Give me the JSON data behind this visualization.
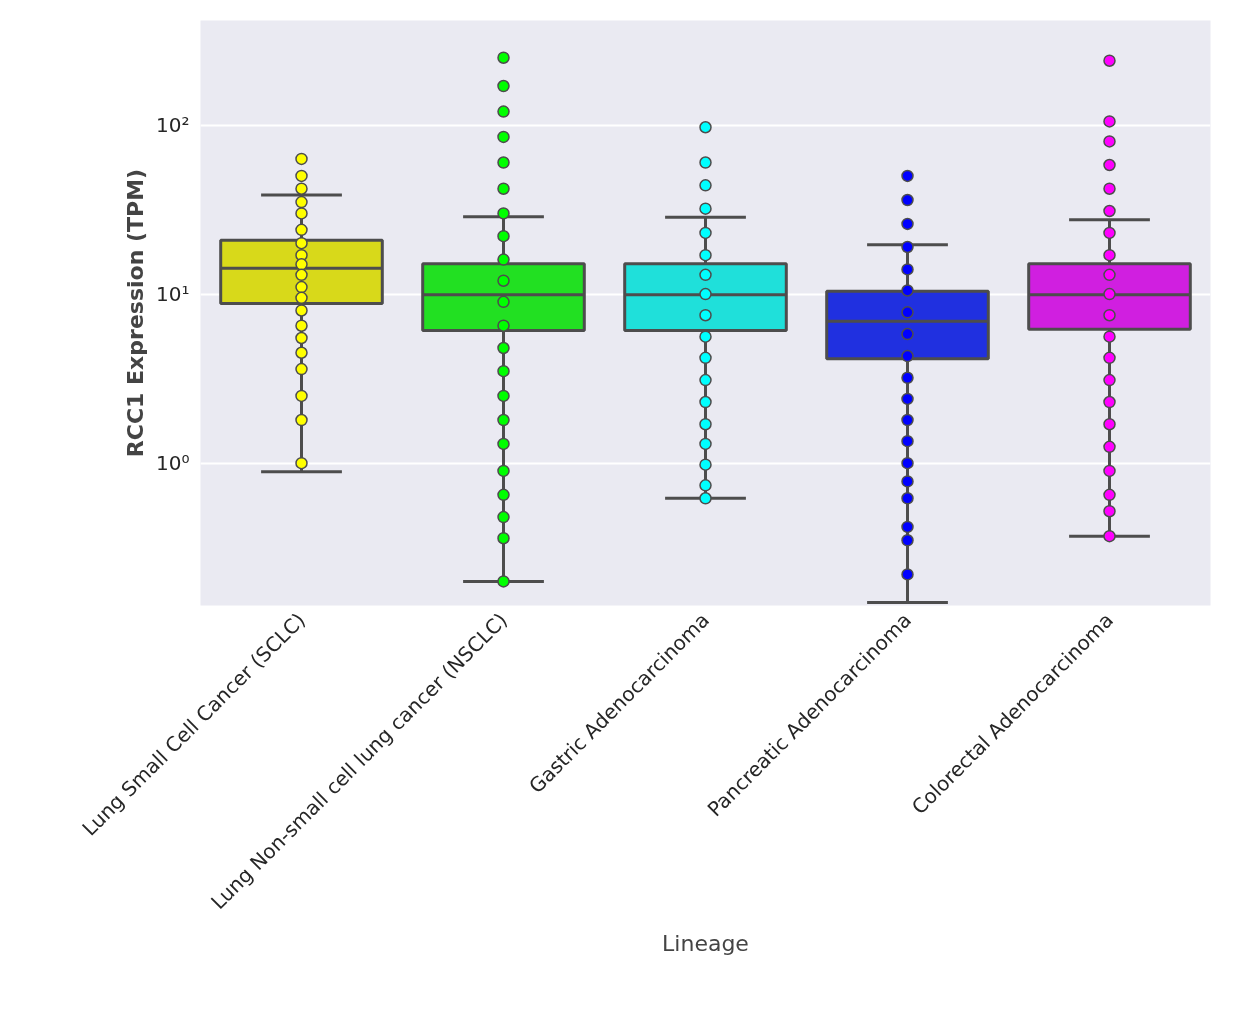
{
  "chart_data": {
    "type": "box",
    "xlabel": "Lineage",
    "ylabel": "RCC1 Expression (TPM)",
    "categories": [
      "Lung Small Cell Cancer (SCLC)",
      "Lung Non-small cell lung cancer (NSCLC)",
      "Gastric Adenocarcinoma",
      "Pancreatic Adenocarcinoma",
      "Colorectal Adenocarcinoma"
    ],
    "colors": [
      "#d8d91a",
      "#22e022",
      "#1fe0da",
      "#2030e0",
      "#d01fe0"
    ],
    "boxes": [
      {
        "low": 0.89,
        "q1": 8.8,
        "median": 14.2,
        "q3": 20.8,
        "high": 38.5
      },
      {
        "low": 0.2,
        "q1": 6.1,
        "median": 9.9,
        "q3": 15.1,
        "high": 28.7
      },
      {
        "low": 0.62,
        "q1": 6.1,
        "median": 9.9,
        "q3": 15.1,
        "high": 28.5
      },
      {
        "low": 0.15,
        "q1": 4.15,
        "median": 6.9,
        "q3": 10.4,
        "high": 19.6
      },
      {
        "low": 0.37,
        "q1": 6.2,
        "median": 9.9,
        "q3": 15.1,
        "high": 27.5
      }
    ],
    "series": [
      {
        "type": "scatter",
        "color": "#ffff00",
        "x": [
          "Lung Small Cell Cancer (SCLC)",
          "Lung Small Cell Cancer (SCLC)",
          "Lung Small Cell Cancer (SCLC)",
          "Lung Small Cell Cancer (SCLC)",
          "Lung Small Cell Cancer (SCLC)",
          "Lung Small Cell Cancer (SCLC)",
          "Lung Small Cell Cancer (SCLC)",
          "Lung Small Cell Cancer (SCLC)",
          "Lung Small Cell Cancer (SCLC)",
          "Lung Small Cell Cancer (SCLC)",
          "Lung Small Cell Cancer (SCLC)",
          "Lung Small Cell Cancer (SCLC)",
          "Lung Small Cell Cancer (SCLC)",
          "Lung Small Cell Cancer (SCLC)",
          "Lung Small Cell Cancer (SCLC)",
          "Lung Small Cell Cancer (SCLC)",
          "Lung Small Cell Cancer (SCLC)",
          "Lung Small Cell Cancer (SCLC)",
          "Lung Small Cell Cancer (SCLC)",
          "Lung Small Cell Cancer (SCLC)"
        ],
        "values": [
          63,
          50,
          42,
          35,
          30,
          24,
          20,
          17,
          15,
          13,
          11,
          9.5,
          8,
          6.5,
          5.5,
          4.5,
          3.6,
          2.5,
          1.8,
          1.0
        ]
      },
      {
        "type": "scatter",
        "color": "#00ff00",
        "x": [
          "Lung Non-small cell lung cancer (NSCLC)",
          "Lung Non-small cell lung cancer (NSCLC)",
          "Lung Non-small cell lung cancer (NSCLC)",
          "Lung Non-small cell lung cancer (NSCLC)",
          "Lung Non-small cell lung cancer (NSCLC)",
          "Lung Non-small cell lung cancer (NSCLC)",
          "Lung Non-small cell lung cancer (NSCLC)",
          "Lung Non-small cell lung cancer (NSCLC)",
          "Lung Non-small cell lung cancer (NSCLC)",
          "Lung Non-small cell lung cancer (NSCLC)",
          "Lung Non-small cell lung cancer (NSCLC)",
          "Lung Non-small cell lung cancer (NSCLC)",
          "Lung Non-small cell lung cancer (NSCLC)",
          "Lung Non-small cell lung cancer (NSCLC)",
          "Lung Non-small cell lung cancer (NSCLC)",
          "Lung Non-small cell lung cancer (NSCLC)",
          "Lung Non-small cell lung cancer (NSCLC)",
          "Lung Non-small cell lung cancer (NSCLC)",
          "Lung Non-small cell lung cancer (NSCLC)",
          "Lung Non-small cell lung cancer (NSCLC)",
          "Lung Non-small cell lung cancer (NSCLC)",
          "Lung Non-small cell lung cancer (NSCLC)"
        ],
        "values": [
          250,
          170,
          120,
          85,
          60,
          42,
          30,
          22,
          16,
          12,
          9,
          6.5,
          4.8,
          3.5,
          2.5,
          1.8,
          1.3,
          0.9,
          0.65,
          0.48,
          0.36,
          0.2
        ]
      },
      {
        "type": "scatter",
        "color": "#00ffff",
        "x": [
          "Gastric Adenocarcinoma",
          "Gastric Adenocarcinoma",
          "Gastric Adenocarcinoma",
          "Gastric Adenocarcinoma",
          "Gastric Adenocarcinoma",
          "Gastric Adenocarcinoma",
          "Gastric Adenocarcinoma",
          "Gastric Adenocarcinoma",
          "Gastric Adenocarcinoma",
          "Gastric Adenocarcinoma",
          "Gastric Adenocarcinoma",
          "Gastric Adenocarcinoma",
          "Gastric Adenocarcinoma",
          "Gastric Adenocarcinoma",
          "Gastric Adenocarcinoma",
          "Gastric Adenocarcinoma",
          "Gastric Adenocarcinoma",
          "Gastric Adenocarcinoma"
        ],
        "values": [
          97,
          60,
          44,
          32,
          23,
          17,
          13,
          10,
          7.5,
          5.6,
          4.2,
          3.1,
          2.3,
          1.7,
          1.3,
          0.98,
          0.74,
          0.62
        ]
      },
      {
        "type": "scatter",
        "color": "#0000ff",
        "x": [
          "Pancreatic Adenocarcinoma",
          "Pancreatic Adenocarcinoma",
          "Pancreatic Adenocarcinoma",
          "Pancreatic Adenocarcinoma",
          "Pancreatic Adenocarcinoma",
          "Pancreatic Adenocarcinoma",
          "Pancreatic Adenocarcinoma",
          "Pancreatic Adenocarcinoma",
          "Pancreatic Adenocarcinoma",
          "Pancreatic Adenocarcinoma",
          "Pancreatic Adenocarcinoma",
          "Pancreatic Adenocarcinoma",
          "Pancreatic Adenocarcinoma",
          "Pancreatic Adenocarcinoma",
          "Pancreatic Adenocarcinoma",
          "Pancreatic Adenocarcinoma",
          "Pancreatic Adenocarcinoma",
          "Pancreatic Adenocarcinoma",
          "Pancreatic Adenocarcinoma"
        ],
        "values": [
          50,
          36,
          26,
          19,
          14,
          10.5,
          7.8,
          5.8,
          4.3,
          3.2,
          2.4,
          1.8,
          1.35,
          1.0,
          0.78,
          0.62,
          0.42,
          0.35,
          0.22
        ]
      },
      {
        "type": "scatter",
        "color": "#ff00ff",
        "x": [
          "Colorectal Adenocarcinoma",
          "Colorectal Adenocarcinoma",
          "Colorectal Adenocarcinoma",
          "Colorectal Adenocarcinoma",
          "Colorectal Adenocarcinoma",
          "Colorectal Adenocarcinoma",
          "Colorectal Adenocarcinoma",
          "Colorectal Adenocarcinoma",
          "Colorectal Adenocarcinoma",
          "Colorectal Adenocarcinoma",
          "Colorectal Adenocarcinoma",
          "Colorectal Adenocarcinoma",
          "Colorectal Adenocarcinoma",
          "Colorectal Adenocarcinoma",
          "Colorectal Adenocarcinoma",
          "Colorectal Adenocarcinoma",
          "Colorectal Adenocarcinoma",
          "Colorectal Adenocarcinoma",
          "Colorectal Adenocarcinoma",
          "Colorectal Adenocarcinoma",
          "Colorectal Adenocarcinoma"
        ],
        "values": [
          240,
          105,
          80,
          58,
          42,
          31,
          23,
          17,
          13,
          10,
          7.5,
          5.6,
          4.2,
          3.1,
          2.3,
          1.7,
          1.25,
          0.9,
          0.65,
          0.52,
          0.37
        ]
      }
    ],
    "marker": "circle",
    "log": "y",
    "ylim": [
      0.144,
      415
    ],
    "yticks": [
      {
        "value": 1,
        "label": "10⁰"
      },
      {
        "value": 10,
        "label": "10¹"
      },
      {
        "value": 100,
        "label": "10²"
      }
    ],
    "grid": "y"
  }
}
